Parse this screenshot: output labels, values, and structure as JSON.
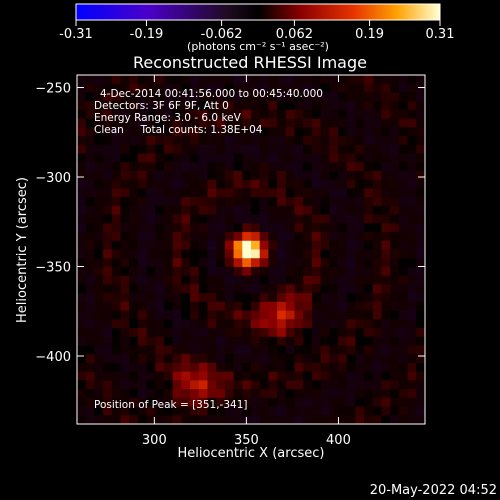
{
  "chart_data": {
    "type": "heatmap",
    "title": "Reconstructed RHESSI Image",
    "xlabel": "Heliocentric X (arcsec)",
    "ylabel": "Heliocentric Y (arcsec)",
    "xlim": [
      258,
      447
    ],
    "ylim": [
      -438,
      -243
    ],
    "xticks": [
      300,
      350,
      400
    ],
    "yticks": [
      -250,
      -300,
      -350,
      -400
    ],
    "colorbar": {
      "min": -0.31,
      "max": 0.31,
      "ticks": [
        "-0.31",
        "-0.19",
        "-0.062",
        "0.062",
        "0.19",
        "0.31"
      ],
      "unit_label": "(photons cm⁻² s⁻¹ asec⁻²)"
    },
    "annotations": [
      "4-Dec-2014 00:41:56.000 to 00:45:40.000",
      "Detectors: 3F 6F 9F, Att 0",
      "Energy Range: 3.0 - 6.0 keV",
      "Clean     Total counts: 1.38E+04"
    ],
    "peak_label": "Position of Peak = [351,-341]",
    "peak_position": [
      351,
      -341
    ],
    "peak_value": 0.31,
    "sources": [
      {
        "x": 351,
        "y": -341,
        "amplitude": 0.31
      },
      {
        "x": 370,
        "y": -380,
        "amplitude": 0.12
      },
      {
        "x": 322,
        "y": -418,
        "amplitude": 0.12
      }
    ],
    "grid": false
  },
  "footer": {
    "timestamp": "20-May-2022 04:52"
  }
}
